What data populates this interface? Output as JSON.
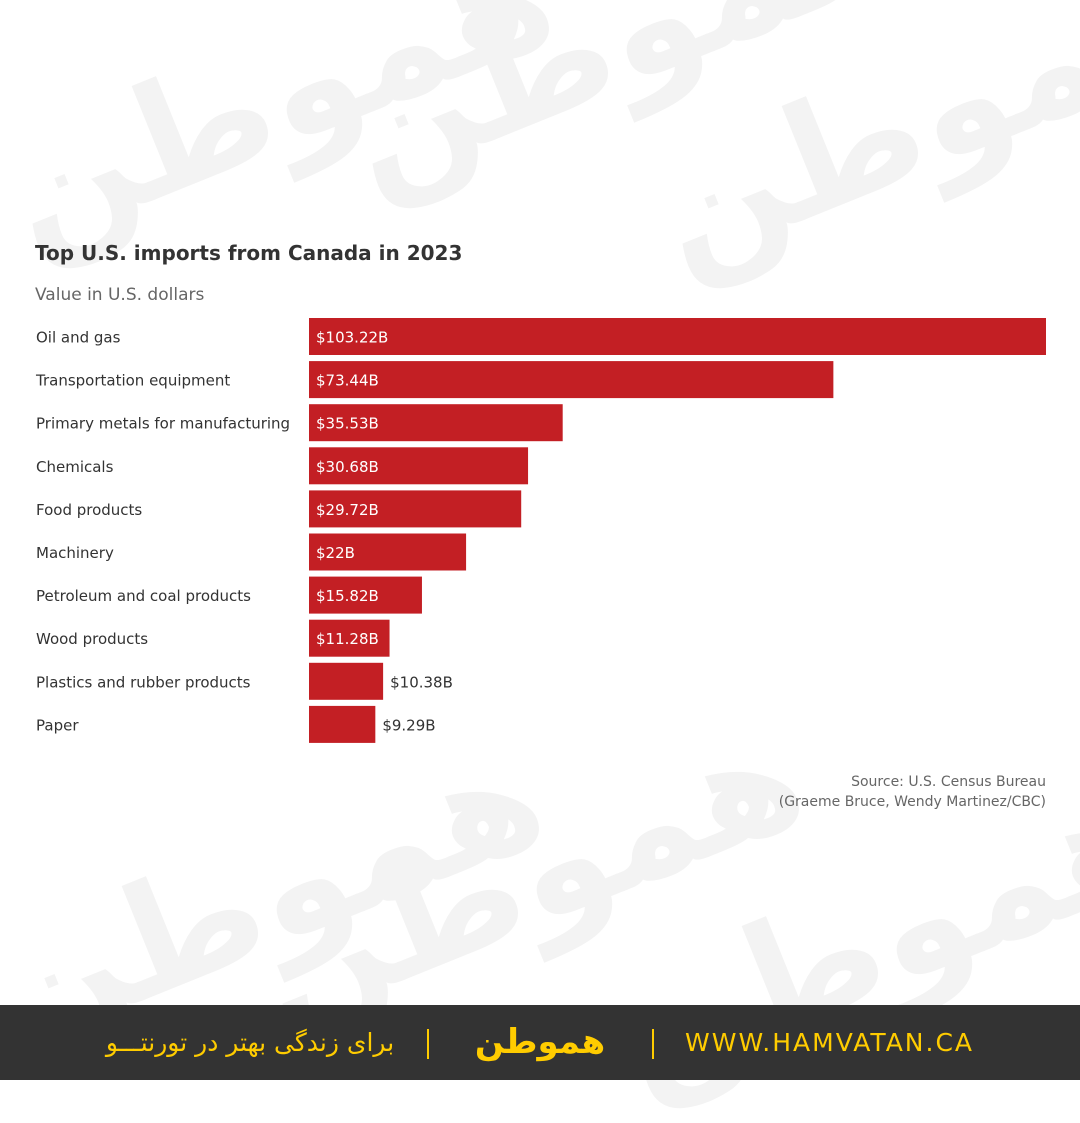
{
  "watermark_text": "هموطن",
  "chart_data": {
    "type": "bar",
    "orientation": "horizontal",
    "title": "Top U.S. imports from Canada in 2023",
    "subtitle": "Value in U.S. dollars",
    "categories": [
      "Oil and gas",
      "Transportation equipment",
      "Primary metals for manufacturing",
      "Chemicals",
      "Food products",
      "Machinery",
      "Petroleum and coal products",
      "Wood products",
      "Plastics and rubber products",
      "Paper"
    ],
    "values": [
      103.22,
      73.44,
      35.53,
      30.68,
      29.72,
      22,
      15.82,
      11.28,
      10.38,
      9.29
    ],
    "value_labels": [
      "$103.22B",
      "$73.44B",
      "$35.53B",
      "$30.68B",
      "$29.72B",
      "$22B",
      "$15.82B",
      "$11.28B",
      "$10.38B",
      "$9.29B"
    ],
    "unit": "B (billion U.S. dollars)",
    "xlim": [
      0,
      103.22
    ],
    "grid": false,
    "legend": "none",
    "bar_color": "#c31f24",
    "source_line1": "Source: U.S. Census Bureau",
    "source_line2": "(Graeme Bruce, Wendy Martinez/CBC)"
  },
  "footer": {
    "tagline": "برای زندگی بهتر در تورنتـــو",
    "logo": "هموطن",
    "url": "WWW.HAMVATAN.CA",
    "background": "#333333",
    "accent": "#ffcc00"
  }
}
